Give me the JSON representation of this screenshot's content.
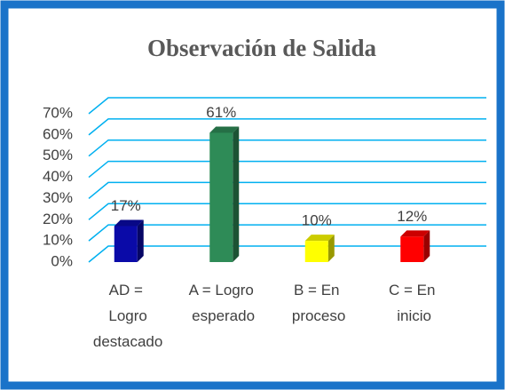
{
  "chart_data": {
    "type": "bar3d",
    "title": "Observación de Salida",
    "categories": [
      "AD = Logro destacado",
      "A = Logro esperado",
      "B = En proceso",
      "C = En inicio"
    ],
    "values": [
      17,
      61,
      10,
      12
    ],
    "value_labels": [
      "17%",
      "61%",
      "10%",
      "12%"
    ],
    "colors": [
      "#0a0aa8",
      "#2e8b57",
      "#ffff00",
      "#ff0000"
    ],
    "ylim": [
      0,
      70
    ],
    "yticks": [
      {
        "value": 0,
        "label": "0%"
      },
      {
        "value": 10,
        "label": "10%"
      },
      {
        "value": 20,
        "label": "20%"
      },
      {
        "value": 30,
        "label": "30%"
      },
      {
        "value": 40,
        "label": "40%"
      },
      {
        "value": 50,
        "label": "50%"
      },
      {
        "value": 60,
        "label": "60%"
      },
      {
        "value": 70,
        "label": "70%"
      }
    ],
    "grid": true,
    "grid_color": "#00b0f0"
  }
}
